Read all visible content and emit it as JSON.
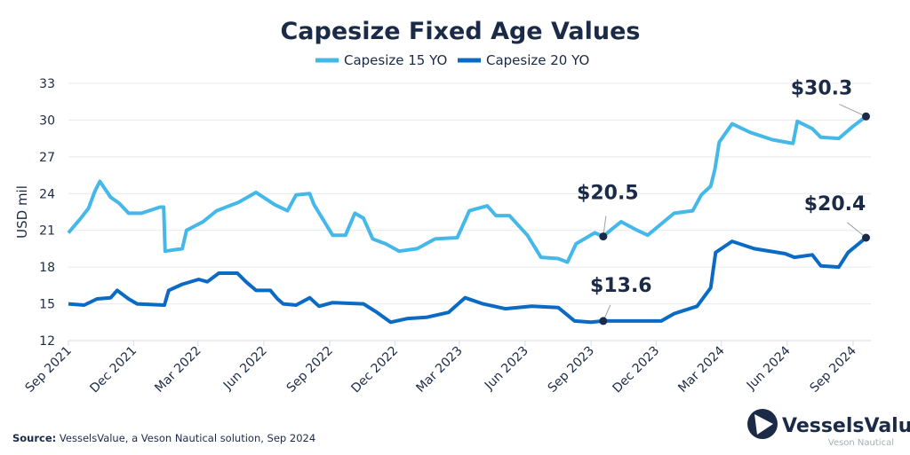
{
  "chart_data": {
    "type": "line",
    "title": "Capesize Fixed Age Values",
    "ylabel": "USD mil",
    "xlabel": "",
    "ylim": [
      12,
      33
    ],
    "yticks": [
      12,
      15,
      18,
      21,
      24,
      27,
      30,
      33
    ],
    "xlim": [
      "2021-09-01",
      "2024-09-20"
    ],
    "xticks": [
      {
        "date": "2021-09-01",
        "label": "Sep 2021"
      },
      {
        "date": "2021-12-01",
        "label": "Dec 2021"
      },
      {
        "date": "2022-03-01",
        "label": "Mar 2022"
      },
      {
        "date": "2022-06-01",
        "label": "Jun 2022"
      },
      {
        "date": "2022-09-01",
        "label": "Sep 2022"
      },
      {
        "date": "2022-12-01",
        "label": "Dec 2022"
      },
      {
        "date": "2023-03-01",
        "label": "Mar 2023"
      },
      {
        "date": "2023-06-01",
        "label": "Jun 2023"
      },
      {
        "date": "2023-09-01",
        "label": "Sep 2023"
      },
      {
        "date": "2023-12-01",
        "label": "Dec 2023"
      },
      {
        "date": "2024-03-01",
        "label": "Mar 2024"
      },
      {
        "date": "2024-06-01",
        "label": "Jun 2024"
      },
      {
        "date": "2024-09-01",
        "label": "Sep 2024"
      }
    ],
    "grid": "horizontal",
    "legend_placement": "top-center",
    "series": [
      {
        "name": "Capesize 15 YO",
        "color": "#45b8ea",
        "points": [
          [
            "2021-09-01",
            20.8
          ],
          [
            "2021-09-17",
            21.9
          ],
          [
            "2021-09-29",
            22.8
          ],
          [
            "2021-10-08",
            24.2
          ],
          [
            "2021-10-15",
            25.0
          ],
          [
            "2021-10-30",
            23.7
          ],
          [
            "2021-11-11",
            23.2
          ],
          [
            "2021-11-24",
            22.4
          ],
          [
            "2021-12-12",
            22.4
          ],
          [
            "2022-01-07",
            22.9
          ],
          [
            "2022-01-12",
            22.9
          ],
          [
            "2022-01-14",
            19.3
          ],
          [
            "2022-02-07",
            19.5
          ],
          [
            "2022-02-13",
            21.0
          ],
          [
            "2022-03-08",
            21.7
          ],
          [
            "2022-03-27",
            22.6
          ],
          [
            "2022-04-27",
            23.3
          ],
          [
            "2022-05-21",
            24.1
          ],
          [
            "2022-06-16",
            23.1
          ],
          [
            "2022-07-04",
            22.6
          ],
          [
            "2022-07-16",
            23.9
          ],
          [
            "2022-08-04",
            24.0
          ],
          [
            "2022-08-10",
            23.1
          ],
          [
            "2022-09-05",
            20.6
          ],
          [
            "2022-09-23",
            20.6
          ],
          [
            "2022-10-06",
            22.4
          ],
          [
            "2022-10-18",
            22.0
          ],
          [
            "2022-10-31",
            20.3
          ],
          [
            "2022-11-18",
            19.9
          ],
          [
            "2022-12-07",
            19.3
          ],
          [
            "2023-01-01",
            19.5
          ],
          [
            "2023-01-26",
            20.3
          ],
          [
            "2023-02-26",
            20.4
          ],
          [
            "2023-03-15",
            22.6
          ],
          [
            "2023-04-09",
            23.0
          ],
          [
            "2023-04-21",
            22.2
          ],
          [
            "2023-05-10",
            22.2
          ],
          [
            "2023-06-04",
            20.6
          ],
          [
            "2023-06-23",
            18.8
          ],
          [
            "2023-07-17",
            18.7
          ],
          [
            "2023-07-30",
            18.4
          ],
          [
            "2023-08-11",
            19.9
          ],
          [
            "2023-09-06",
            20.8
          ],
          [
            "2023-09-18",
            20.5
          ],
          [
            "2023-09-30",
            21.1
          ],
          [
            "2023-10-13",
            21.7
          ],
          [
            "2023-11-01",
            21.1
          ],
          [
            "2023-11-19",
            20.6
          ],
          [
            "2023-12-26",
            22.4
          ],
          [
            "2024-01-21",
            22.6
          ],
          [
            "2024-02-02",
            23.9
          ],
          [
            "2024-02-15",
            24.6
          ],
          [
            "2024-02-21",
            26.0
          ],
          [
            "2024-02-27",
            28.2
          ],
          [
            "2024-03-16",
            29.7
          ],
          [
            "2024-04-10",
            29.0
          ],
          [
            "2024-05-11",
            28.4
          ],
          [
            "2024-06-09",
            28.1
          ],
          [
            "2024-06-15",
            29.9
          ],
          [
            "2024-07-06",
            29.3
          ],
          [
            "2024-07-18",
            28.6
          ],
          [
            "2024-08-12",
            28.5
          ],
          [
            "2024-09-01",
            29.5
          ],
          [
            "2024-09-19",
            30.3
          ]
        ]
      },
      {
        "name": "Capesize 20 YO",
        "color": "#0a6ac4",
        "points": [
          [
            "2021-09-01",
            15.0
          ],
          [
            "2021-09-23",
            14.9
          ],
          [
            "2021-10-11",
            15.4
          ],
          [
            "2021-10-30",
            15.5
          ],
          [
            "2021-11-08",
            16.1
          ],
          [
            "2021-11-24",
            15.4
          ],
          [
            "2021-12-06",
            15.0
          ],
          [
            "2022-01-13",
            14.9
          ],
          [
            "2022-01-19",
            16.1
          ],
          [
            "2022-02-07",
            16.6
          ],
          [
            "2022-03-02",
            17.0
          ],
          [
            "2022-03-14",
            16.8
          ],
          [
            "2022-03-30",
            17.5
          ],
          [
            "2022-04-25",
            17.5
          ],
          [
            "2022-05-07",
            16.8
          ],
          [
            "2022-05-21",
            16.1
          ],
          [
            "2022-06-10",
            16.1
          ],
          [
            "2022-06-20",
            15.4
          ],
          [
            "2022-06-28",
            15.0
          ],
          [
            "2022-07-16",
            14.9
          ],
          [
            "2022-08-04",
            15.5
          ],
          [
            "2022-08-17",
            14.8
          ],
          [
            "2022-09-05",
            15.1
          ],
          [
            "2022-10-18",
            15.0
          ],
          [
            "2022-11-06",
            14.3
          ],
          [
            "2022-11-25",
            13.5
          ],
          [
            "2022-12-19",
            13.8
          ],
          [
            "2023-01-14",
            13.9
          ],
          [
            "2023-02-14",
            14.3
          ],
          [
            "2023-03-09",
            15.5
          ],
          [
            "2023-04-03",
            15.0
          ],
          [
            "2023-05-04",
            14.6
          ],
          [
            "2023-06-10",
            14.8
          ],
          [
            "2023-07-17",
            14.7
          ],
          [
            "2023-08-09",
            13.6
          ],
          [
            "2023-09-01",
            13.5
          ],
          [
            "2023-09-18",
            13.6
          ],
          [
            "2023-12-08",
            13.6
          ],
          [
            "2023-12-26",
            14.2
          ],
          [
            "2024-01-27",
            14.8
          ],
          [
            "2024-02-15",
            16.3
          ],
          [
            "2024-02-22",
            19.2
          ],
          [
            "2024-03-16",
            20.1
          ],
          [
            "2024-04-16",
            19.5
          ],
          [
            "2024-05-29",
            19.1
          ],
          [
            "2024-06-11",
            18.8
          ],
          [
            "2024-07-06",
            19.0
          ],
          [
            "2024-07-18",
            18.1
          ],
          [
            "2024-08-12",
            18.0
          ],
          [
            "2024-08-25",
            19.2
          ],
          [
            "2024-09-19",
            20.4
          ]
        ]
      }
    ],
    "annotations": [
      {
        "label": "$30.3",
        "date": "2024-09-19",
        "value": 30.3
      },
      {
        "label": "$20.5",
        "date": "2023-09-18",
        "value": 20.5
      },
      {
        "label": "$13.6",
        "date": "2023-09-18",
        "value": 13.6
      },
      {
        "label": "$20.4",
        "date": "2024-09-19",
        "value": 20.4
      }
    ]
  },
  "source": {
    "prefix": "Source:",
    "text": " VesselsValue, a Veson Nautical solution, Sep 2024"
  },
  "logo": {
    "name": "VesselsValue",
    "sub": "Veson Nautical"
  }
}
